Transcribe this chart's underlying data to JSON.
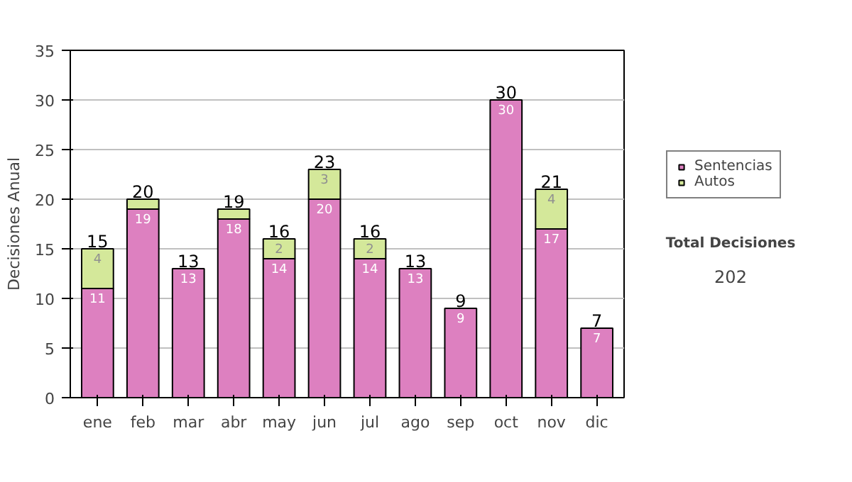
{
  "chart_data": {
    "type": "bar",
    "stacked": true,
    "ylabel": "Decisiones Anual",
    "categories": [
      "ene",
      "feb",
      "mar",
      "abr",
      "may",
      "jun",
      "jul",
      "ago",
      "sep",
      "oct",
      "nov",
      "dic"
    ],
    "series": [
      {
        "name": "Sentencias",
        "color": "#dd80c0",
        "values": [
          11,
          19,
          13,
          18,
          14,
          20,
          14,
          13,
          9,
          30,
          17,
          7
        ],
        "value_labels": [
          "11",
          "19",
          "13",
          "18",
          "14",
          "20",
          "14",
          "13",
          "9",
          "30",
          "17",
          "7"
        ]
      },
      {
        "name": "Autos",
        "color": "#d4e89a",
        "values": [
          4,
          1,
          0,
          1,
          2,
          3,
          2,
          0,
          0,
          0,
          4,
          0
        ],
        "value_labels": [
          "4",
          null,
          null,
          null,
          "2",
          "3",
          "2",
          null,
          null,
          null,
          "4",
          null
        ]
      }
    ],
    "totals": [
      "15",
      "20",
      "13",
      "19",
      "16",
      "23",
      "16",
      "13",
      "9",
      "30",
      "21",
      "7"
    ],
    "ylim": [
      0,
      35
    ],
    "yticks": [
      0,
      5,
      10,
      15,
      20,
      25,
      30,
      35
    ],
    "grid": "y",
    "legend": "right",
    "annotations": [
      "Total Decisiones",
      "202"
    ]
  }
}
